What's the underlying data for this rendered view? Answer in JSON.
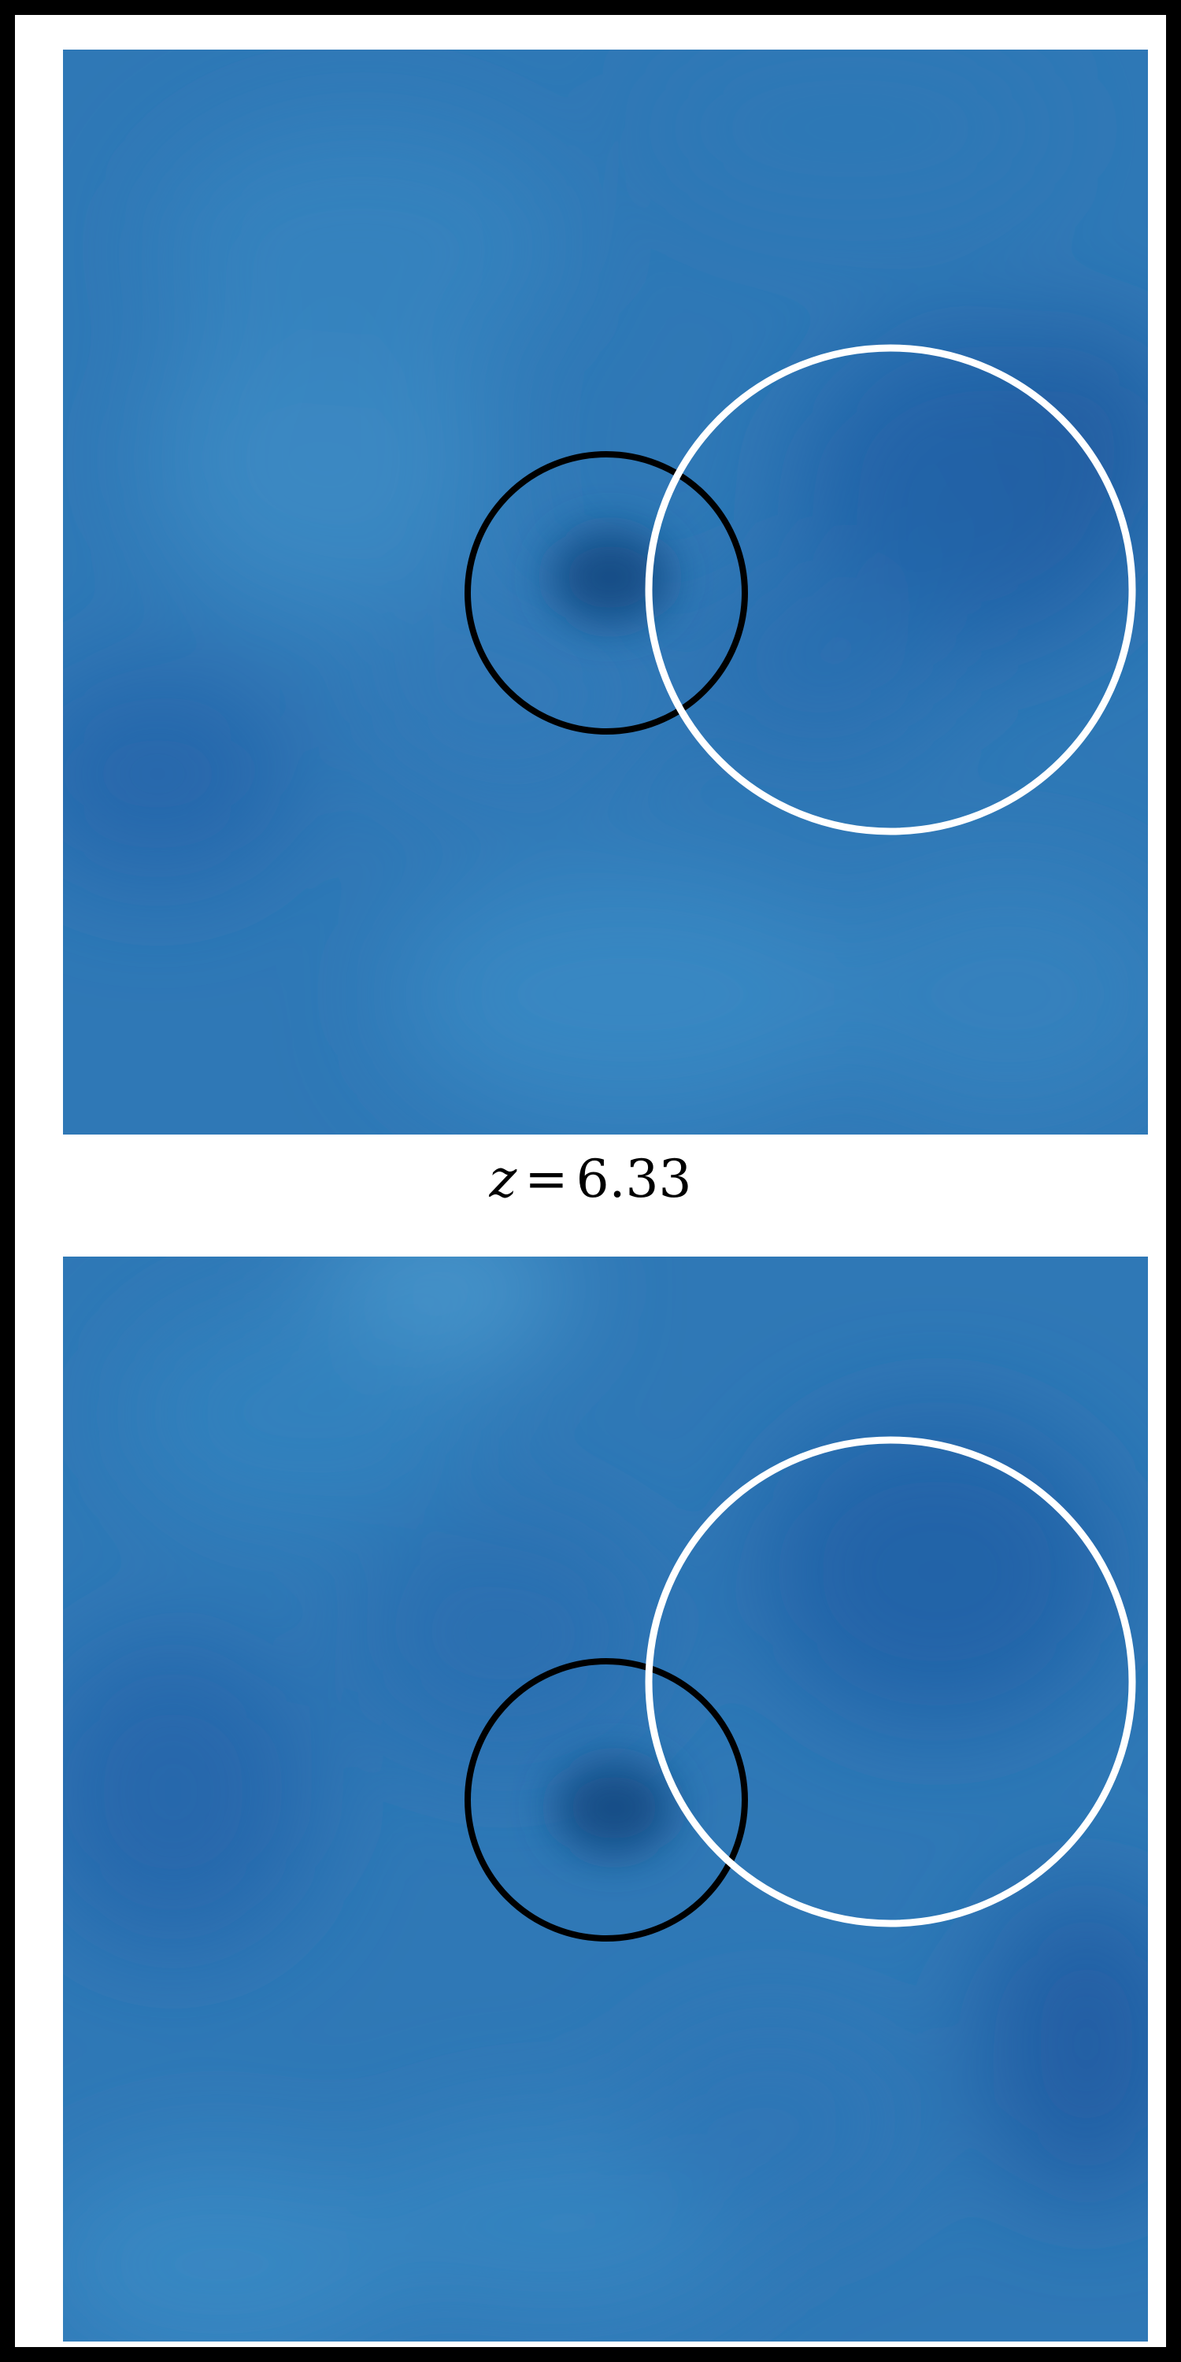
{
  "label": {
    "variable": "z",
    "equals": "=",
    "value": "6.33"
  },
  "colors": {
    "background_map": "#2f78b6",
    "hot_spot_light": "#4a97cc",
    "cold_spot_dark": "#144d86",
    "outer_border": "#000000",
    "frame": "#ffffff",
    "small_circle": "#000000",
    "large_circle": "#ffffff"
  },
  "panels": [
    {
      "name": "top-map",
      "circles": [
        "small-black-circle",
        "large-white-circle"
      ]
    },
    {
      "name": "bottom-map",
      "circles": [
        "small-black-circle",
        "large-white-circle"
      ]
    }
  ]
}
